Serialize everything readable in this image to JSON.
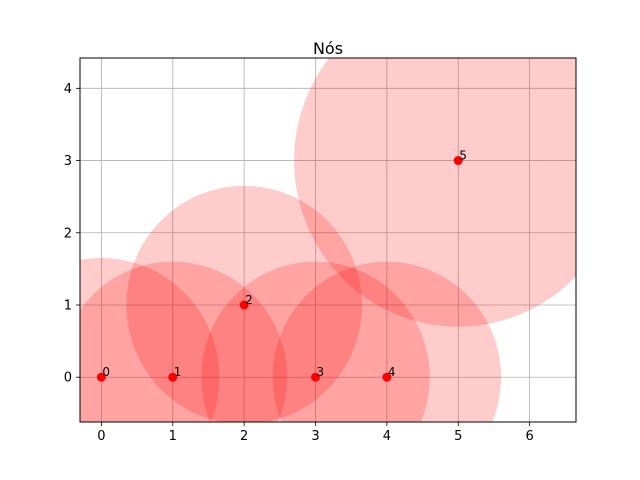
{
  "chart_data": {
    "type": "scatter",
    "title": "Nós",
    "xlabel": "",
    "ylabel": "",
    "xlim": [
      -0.3,
      6.65
    ],
    "ylim": [
      -0.62,
      4.42
    ],
    "xticks": [
      0,
      1,
      2,
      3,
      4,
      5,
      6
    ],
    "yticks": [
      0,
      1,
      2,
      3,
      4
    ],
    "grid": true,
    "point_color": "#ff0000",
    "circle_color": "#ff0000",
    "circle_opacity": 0.2,
    "points": [
      {
        "label": "0",
        "x": 0,
        "y": 0,
        "radius": 1.65
      },
      {
        "label": "1",
        "x": 1,
        "y": 0,
        "radius": 1.6
      },
      {
        "label": "2",
        "x": 2,
        "y": 1,
        "radius": 1.65
      },
      {
        "label": "3",
        "x": 3,
        "y": 0,
        "radius": 1.6
      },
      {
        "label": "4",
        "x": 4,
        "y": 0,
        "radius": 1.6
      },
      {
        "label": "5",
        "x": 5,
        "y": 3,
        "radius": 2.3
      }
    ]
  }
}
